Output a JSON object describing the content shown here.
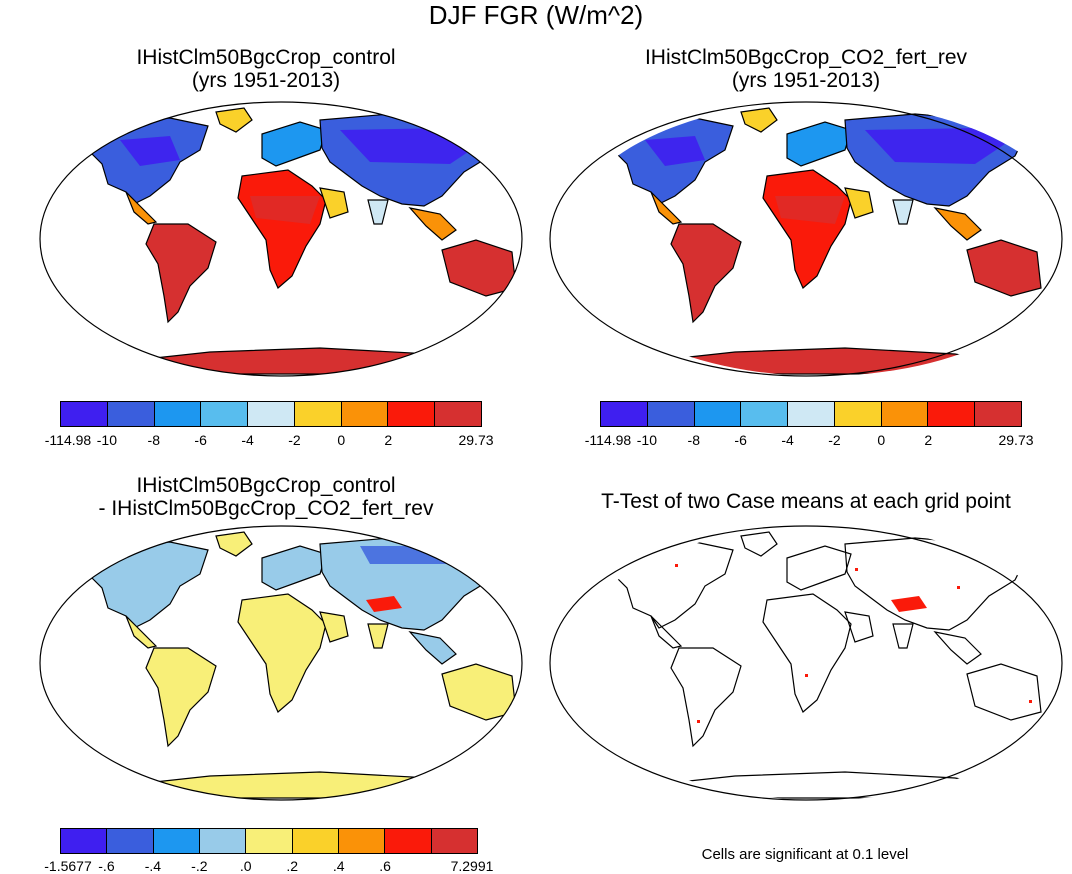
{
  "title": "DJF FGR (W/m^2)",
  "panels": [
    {
      "title1": "IHistClm50BgcCrop_control",
      "title2": "(yrs 1951-2013)"
    },
    {
      "title1": "IHistClm50BgcCrop_CO2_fert_rev",
      "title2": "(yrs 1951-2013)"
    },
    {
      "title1": "IHistClm50BgcCrop_control",
      "title2": "- IHistClm50BgcCrop_CO2_fert_rev"
    },
    {
      "title1": "T-Test of two Case means at each grid point",
      "title2": ""
    }
  ],
  "colorbar_top": {
    "labels": [
      "-114.98",
      "-10",
      "-8",
      "-6",
      "-4",
      "-2",
      "0",
      "2",
      "29.73"
    ],
    "colors": [
      "#3f1ff0",
      "#3a5edd",
      "#1d97f0",
      "#58bdee",
      "#cfe8f4",
      "#fad12a",
      "#fa9208",
      "#fa1a0a",
      "#d63030"
    ]
  },
  "colorbar_diff": {
    "labels": [
      "-1.5677",
      "-.6",
      "-.4",
      "-.2",
      ".0",
      ".2",
      ".4",
      ".6",
      "7.2991"
    ],
    "colors": [
      "#3f1ff0",
      "#3a5edd",
      "#1d97f0",
      "#98cbe9",
      "#f8ef78",
      "#fad12a",
      "#fa9208",
      "#fa1a0a",
      "#d63030"
    ]
  },
  "ttest_note": "Cells are significant at 0.1 level"
}
